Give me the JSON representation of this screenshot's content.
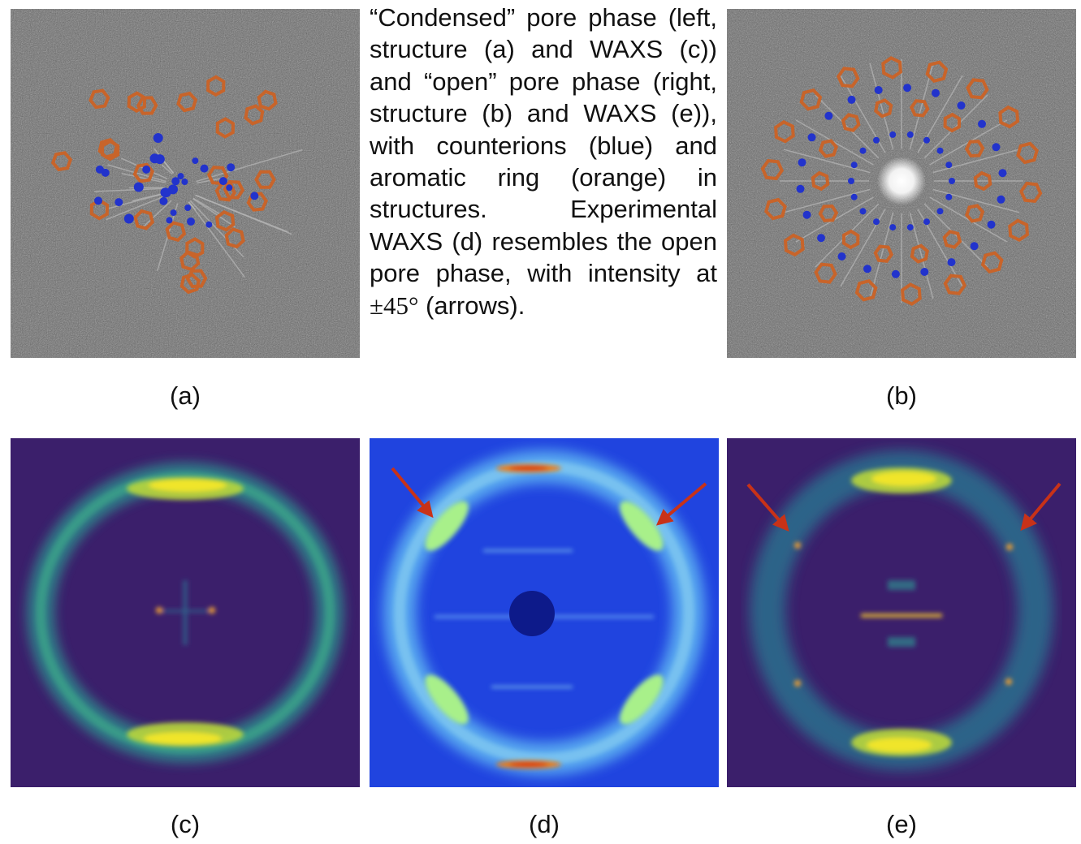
{
  "caption": {
    "text": "“Condensed” pore phase (left, structure (a) and WAXS (c)) and “open” pore phase (right, struc­ture (b) and WAXS (e)), with counterions (blue) and aromatic ring (orange) in structures. Experimental WAXS (d) resembles the open pore phase, with intensity at",
    "math": "±45°",
    "tail": " (arrows)."
  },
  "panels": {
    "a": {
      "label": "(a)"
    },
    "b": {
      "label": "(b)"
    },
    "c": {
      "label": "(c)"
    },
    "d": {
      "label": "(d)"
    },
    "e": {
      "label": "(e)"
    }
  },
  "colors": {
    "counterion": "#2233cc",
    "aromatic_ring": "#c8642a",
    "arrow": "#c83218",
    "viridis_background": "#3b1f6b",
    "jet_background": "#1b3bd8"
  }
}
